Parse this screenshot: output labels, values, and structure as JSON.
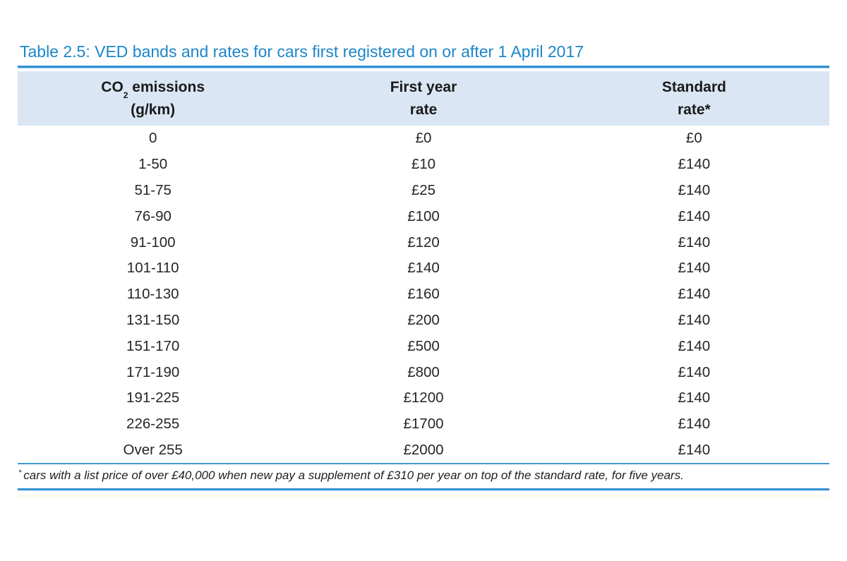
{
  "colors": {
    "title_blue": "#1c86c7",
    "rule_blue": "#2e8fd0",
    "footnote_rule_blue": "#3d9ad1",
    "header_bg": "#dae6f3",
    "body_text": "#262626"
  },
  "table": {
    "title": "Table 2.5: VED bands and rates for cars first registered on or after 1 April 2017",
    "header": {
      "col1": {
        "prefix": "CO",
        "subscript": "2",
        "suffix": " emissions",
        "line2": "(g/km)"
      },
      "col2": {
        "line1": "First year",
        "line2": "rate"
      },
      "col3": {
        "line1": "Standard",
        "line2": "rate*"
      }
    },
    "rows": [
      {
        "emissions": "0",
        "first_year_rate": "£0",
        "standard_rate": "£0"
      },
      {
        "emissions": "1-50",
        "first_year_rate": "£10",
        "standard_rate": "£140"
      },
      {
        "emissions": "51-75",
        "first_year_rate": "£25",
        "standard_rate": "£140"
      },
      {
        "emissions": "76-90",
        "first_year_rate": "£100",
        "standard_rate": "£140"
      },
      {
        "emissions": "91-100",
        "first_year_rate": "£120",
        "standard_rate": "£140"
      },
      {
        "emissions": "101-110",
        "first_year_rate": "£140",
        "standard_rate": "£140"
      },
      {
        "emissions": "110-130",
        "first_year_rate": "£160",
        "standard_rate": "£140"
      },
      {
        "emissions": "131-150",
        "first_year_rate": "£200",
        "standard_rate": "£140"
      },
      {
        "emissions": "151-170",
        "first_year_rate": "£500",
        "standard_rate": "£140"
      },
      {
        "emissions": "171-190",
        "first_year_rate": "£800",
        "standard_rate": "£140"
      },
      {
        "emissions": "191-225",
        "first_year_rate": "£1200",
        "standard_rate": "£140"
      },
      {
        "emissions": "226-255",
        "first_year_rate": "£1700",
        "standard_rate": "£140"
      },
      {
        "emissions": "Over 255",
        "first_year_rate": "£2000",
        "standard_rate": "£140"
      }
    ],
    "footnote": {
      "marker": "*",
      "text": "cars with a list price of over £40,000 when new pay a supplement of £310 per year on top of the standard rate, for five years."
    }
  }
}
